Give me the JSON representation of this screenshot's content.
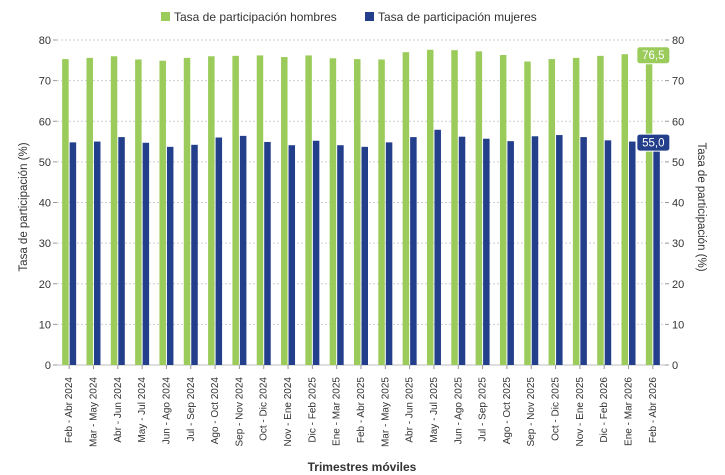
{
  "chart_data": {
    "type": "bar",
    "xlabel": "Trimestres móviles",
    "ylabel": "Tasa de participación (%)",
    "ylabel_right": "Tasa de participación (%)",
    "ylim": [
      0,
      80
    ],
    "yticks": [
      "0",
      "10",
      "20",
      "30",
      "40",
      "50",
      "60",
      "70",
      "80"
    ],
    "grid": true,
    "legend_position": "top",
    "categories": [
      "Feb - Abr 2024",
      "Mar - May 2024",
      "Abr - Jun 2024",
      "May - Jul 2024",
      "Jun - Ago 2024",
      "Jul - Sep 2024",
      "Ago - Oct 2024",
      "Sep - Nov 2024",
      "Oct - Dic 2024",
      "Nov - Ene 2024",
      "Dic - Feb 2025",
      "Ene - Mar 2025",
      "Feb - Abr 2025",
      "Mar - May 2025",
      "Abr - Jun 2025",
      "May - Jul 2025",
      "Jun - Ago 2025",
      "Jul - Sep 2025",
      "Ago - Oct 2025",
      "Sep - Nov 2025",
      "Oct - Dic 2025",
      "Nov - Ene 2025",
      "Dic - Feb 2026",
      "Ene - Mar 2026",
      "Feb - Abr 2026"
    ],
    "series": [
      {
        "name": "Tasa de participación hombres",
        "color": "#9bcb5b",
        "values": [
          75.3,
          75.6,
          76.0,
          75.2,
          74.9,
          75.6,
          76.0,
          76.1,
          76.2,
          75.8,
          76.2,
          75.5,
          75.3,
          75.2,
          77.0,
          77.6,
          77.5,
          77.2,
          76.3,
          74.7,
          75.3,
          75.6,
          76.1,
          76.5,
          76.5
        ]
      },
      {
        "name": "Tasa de participación mujeres",
        "color": "#233f8b",
        "values": [
          54.8,
          55.0,
          56.1,
          54.7,
          53.7,
          54.2,
          56.0,
          56.4,
          54.9,
          54.1,
          55.2,
          54.1,
          53.7,
          54.8,
          56.1,
          57.9,
          56.2,
          55.7,
          55.1,
          56.3,
          56.6,
          56.1,
          55.3,
          55.0,
          55.0
        ]
      }
    ],
    "annotations": [
      {
        "series": 0,
        "index": 24,
        "text": "76,5"
      },
      {
        "series": 1,
        "index": 24,
        "text": "55,0"
      }
    ]
  }
}
